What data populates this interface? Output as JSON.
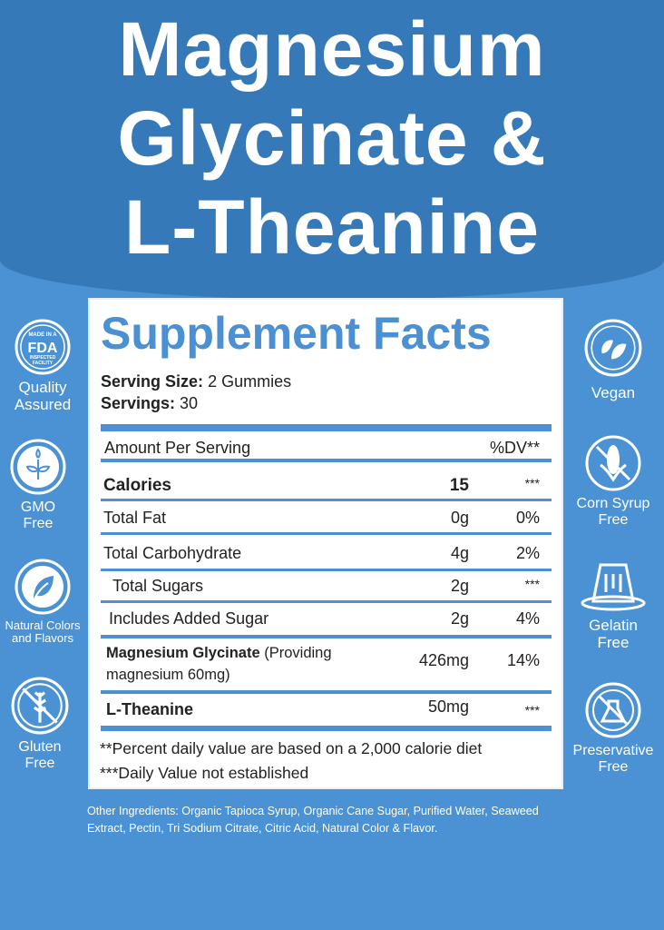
{
  "title": {
    "line1": "Magnesium",
    "line2": "Glycinate &",
    "line3": "L-Theanine"
  },
  "facts": {
    "heading": "Supplement Facts",
    "serving_size_label": "Serving Size:",
    "serving_size_value": "2 Gummies",
    "servings_label": "Servings:",
    "servings_value": "30",
    "amount_header": "Amount Per Serving",
    "dv_header": "%DV**",
    "rows": [
      {
        "name": "Calories",
        "amount": "15",
        "dv": "***"
      },
      {
        "name": "Total Fat",
        "amount": "0g",
        "dv": "0%"
      },
      {
        "name": "Total Carbohydrate",
        "amount": "4g",
        "dv": "2%"
      },
      {
        "name": "Total Sugars",
        "amount": "2g",
        "dv": "***"
      },
      {
        "name": "Includes Added Sugar",
        "amount": "2g",
        "dv": "4%"
      },
      {
        "name": "Magnesium Glycinate",
        "note": "(Providing",
        "note2": "magnesium 60mg)",
        "amount": "426mg",
        "dv": "14%"
      },
      {
        "name": "L-Theanine",
        "amount": "50mg",
        "dv": "***"
      }
    ],
    "footnote1": "**Percent daily value are based on a 2,000 calorie diet",
    "footnote2": "***Daily Value not established"
  },
  "badges_left": [
    {
      "icon": "fda-icon",
      "label": "Quality Assured",
      "icon_text": [
        "MADE IN A",
        "FDA",
        "INSPECTED",
        "FACILITY"
      ]
    },
    {
      "icon": "sprout-icon",
      "label": "GMO Free"
    },
    {
      "icon": "leaf-icon",
      "label": "Natural Colors and Flavors"
    },
    {
      "icon": "wheat-crossed-icon",
      "label": "Gluten Free"
    }
  ],
  "badges_right": [
    {
      "icon": "vegan-leaves-icon",
      "label": "Vegan"
    },
    {
      "icon": "corn-crossed-icon",
      "label": "Corn Syrup Free"
    },
    {
      "icon": "gelatin-icon",
      "label": "Gelatin Free"
    },
    {
      "icon": "flask-crossed-icon",
      "label": "Preservative Free"
    }
  ],
  "other_ingredients": "Other Ingredients: Organic Tapioca Syrup, Organic Cane Sugar, Purified Water, Seaweed Extract, Pectin, Tri Sodium Citrate, Citric Acid, Natural Color & Flavor.",
  "colors": {
    "header": "#3579b9",
    "background": "#4a92d4",
    "accent": "#4a90d2"
  }
}
